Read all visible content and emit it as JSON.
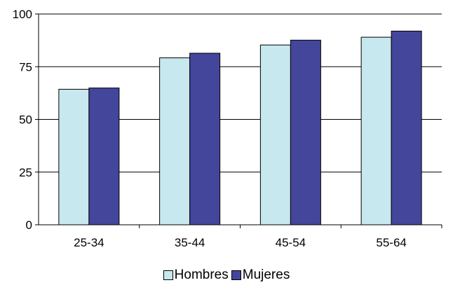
{
  "chart_data": {
    "type": "bar",
    "categories": [
      "25-34",
      "35-44",
      "45-54",
      "55-64"
    ],
    "series": [
      {
        "name": "Hombres",
        "values": [
          64.3,
          79.2,
          85.3,
          89.0
        ],
        "color": "#C6E8EE"
      },
      {
        "name": "Mujeres",
        "values": [
          64.9,
          81.4,
          87.6,
          91.9
        ],
        "color": "#43469A"
      }
    ],
    "yticks": [
      "0",
      "25",
      "50",
      "75",
      "100"
    ],
    "ylim": [
      0,
      100
    ],
    "grid": true,
    "legend_position": "bottom-center",
    "title": "",
    "xlabel": "",
    "ylabel": ""
  }
}
